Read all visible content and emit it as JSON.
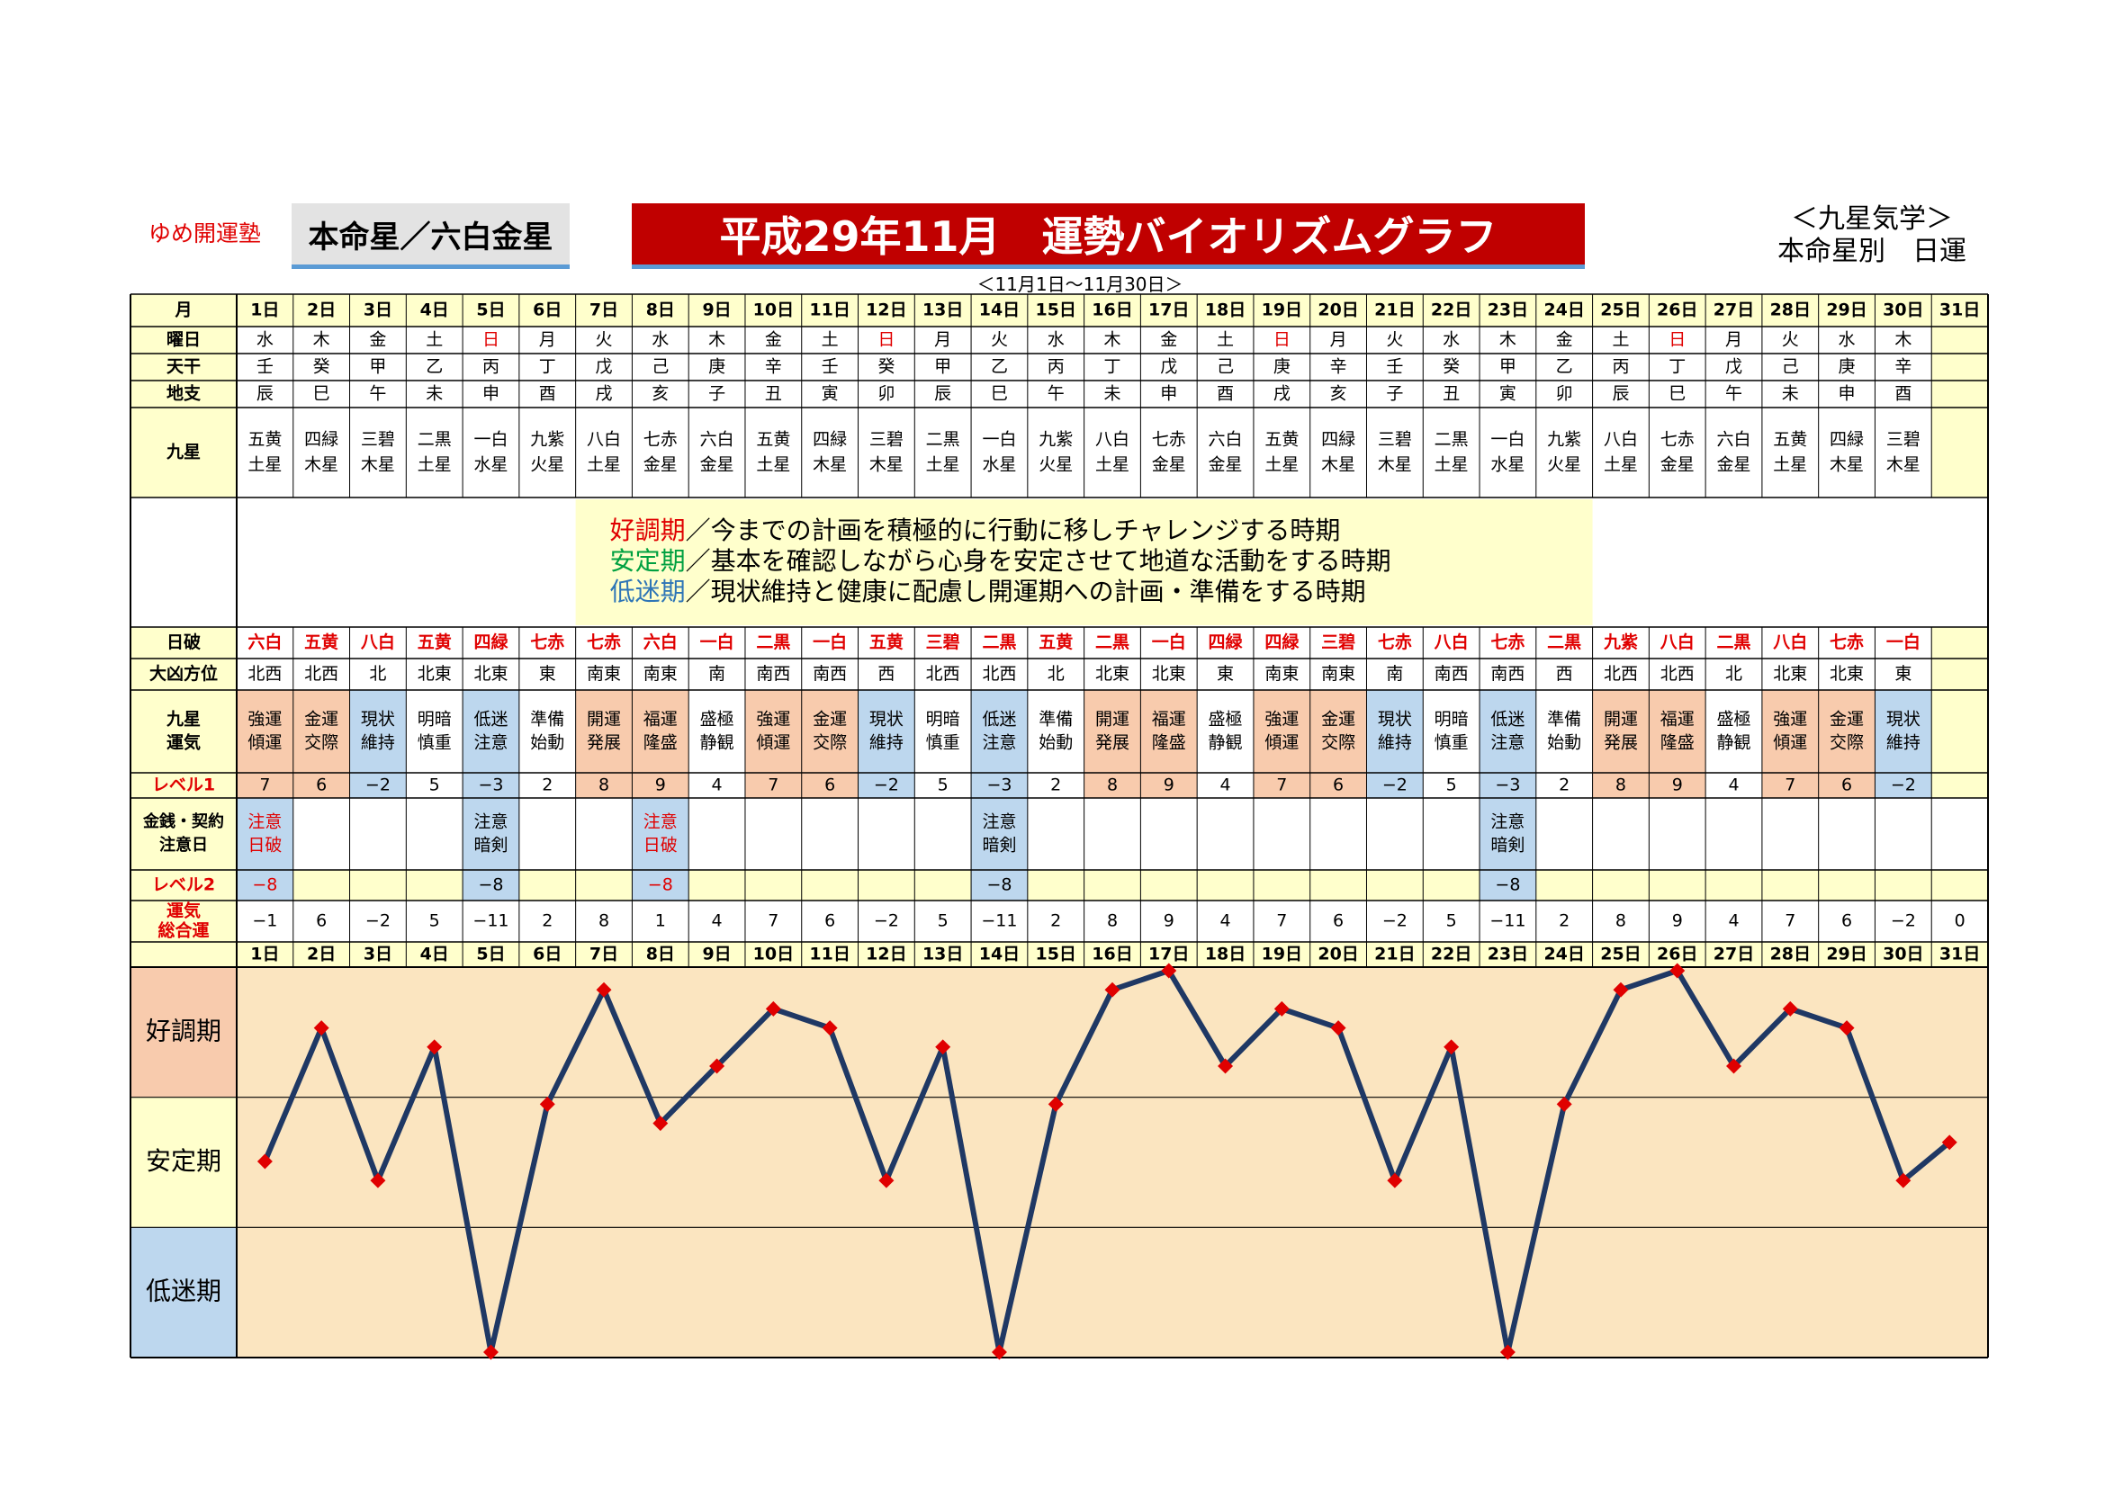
{
  "header": {
    "brand": "ゆめ開運塾",
    "honmei": "本命星／六白金星",
    "title": "平成29年11月　運勢バイオリズムグラフ",
    "kyusei_line1": "＜九星気学＞",
    "kyusei_line2": "本命星別　日運",
    "range": "＜11月1日～11月30日＞"
  },
  "labels": {
    "month": "月",
    "weekday": "曜日",
    "tenkan": "天干",
    "chishi": "地支",
    "kyusei": "九星",
    "hiha": "日破",
    "daikyo": "大凶方位",
    "unki": [
      "九星",
      "運気"
    ],
    "level1": "レベル1",
    "kinsen": [
      "金銭・契約",
      "注意日"
    ],
    "level2": "レベル2",
    "total": [
      "運気",
      "総合運"
    ]
  },
  "legend": [
    {
      "term": "好調期",
      "text": "／今までの計画を積極的に行動に移しチャレンジする時期",
      "color": "#e00000"
    },
    {
      "term": "安定期",
      "text": "／基本を確認しながら心身を安定させて地道な活動をする時期",
      "color": "#00a040"
    },
    {
      "term": "低迷期",
      "text": "／現状維持と健康に配慮し開運期への計画・準備をする時期",
      "color": "#2e75b6"
    }
  ],
  "phases": [
    "好調期",
    "安定期",
    "低迷期"
  ],
  "colors": {
    "title_bg": "#c00000",
    "header_yellow": "#ffffcc",
    "good": "#f8cbad",
    "bad": "#bdd7ee",
    "chart_bg": "#fbe5c0",
    "line": "#1f3864",
    "marker": "#e00000",
    "red_text": "#e00000"
  },
  "days": [
    "1日",
    "2日",
    "3日",
    "4日",
    "5日",
    "6日",
    "7日",
    "8日",
    "9日",
    "10日",
    "11日",
    "12日",
    "13日",
    "14日",
    "15日",
    "16日",
    "17日",
    "18日",
    "19日",
    "20日",
    "21日",
    "22日",
    "23日",
    "24日",
    "25日",
    "26日",
    "27日",
    "28日",
    "29日",
    "30日",
    "31日"
  ],
  "weekday": [
    "水",
    "木",
    "金",
    "土",
    "日",
    "月",
    "火",
    "水",
    "木",
    "金",
    "土",
    "日",
    "月",
    "火",
    "水",
    "木",
    "金",
    "土",
    "日",
    "月",
    "火",
    "水",
    "木",
    "金",
    "土",
    "日",
    "月",
    "火",
    "水",
    "木",
    ""
  ],
  "weekday_red": [
    4,
    11,
    18,
    25
  ],
  "tenkan": [
    "壬",
    "癸",
    "甲",
    "乙",
    "丙",
    "丁",
    "戊",
    "己",
    "庚",
    "辛",
    "壬",
    "癸",
    "甲",
    "乙",
    "丙",
    "丁",
    "戊",
    "己",
    "庚",
    "辛",
    "壬",
    "癸",
    "甲",
    "乙",
    "丙",
    "丁",
    "戊",
    "己",
    "庚",
    "辛",
    ""
  ],
  "chishi": [
    "辰",
    "巳",
    "午",
    "未",
    "申",
    "酉",
    "戌",
    "亥",
    "子",
    "丑",
    "寅",
    "卯",
    "辰",
    "巳",
    "午",
    "未",
    "申",
    "酉",
    "戌",
    "亥",
    "子",
    "丑",
    "寅",
    "卯",
    "辰",
    "巳",
    "午",
    "未",
    "申",
    "酉",
    ""
  ],
  "kyusei": [
    [
      "五黄",
      "土星"
    ],
    [
      "四緑",
      "木星"
    ],
    [
      "三碧",
      "木星"
    ],
    [
      "二黒",
      "土星"
    ],
    [
      "一白",
      "水星"
    ],
    [
      "九紫",
      "火星"
    ],
    [
      "八白",
      "土星"
    ],
    [
      "七赤",
      "金星"
    ],
    [
      "六白",
      "金星"
    ],
    [
      "五黄",
      "土星"
    ],
    [
      "四緑",
      "木星"
    ],
    [
      "三碧",
      "木星"
    ],
    [
      "二黒",
      "土星"
    ],
    [
      "一白",
      "水星"
    ],
    [
      "九紫",
      "火星"
    ],
    [
      "八白",
      "土星"
    ],
    [
      "七赤",
      "金星"
    ],
    [
      "六白",
      "金星"
    ],
    [
      "五黄",
      "土星"
    ],
    [
      "四緑",
      "木星"
    ],
    [
      "三碧",
      "木星"
    ],
    [
      "二黒",
      "土星"
    ],
    [
      "一白",
      "水星"
    ],
    [
      "九紫",
      "火星"
    ],
    [
      "八白",
      "土星"
    ],
    [
      "七赤",
      "金星"
    ],
    [
      "六白",
      "金星"
    ],
    [
      "五黄",
      "土星"
    ],
    [
      "四緑",
      "木星"
    ],
    [
      "三碧",
      "木星"
    ],
    [
      "",
      ""
    ]
  ],
  "hiha": [
    "六白",
    "五黄",
    "八白",
    "五黄",
    "四緑",
    "七赤",
    "七赤",
    "六白",
    "一白",
    "二黒",
    "一白",
    "五黄",
    "三碧",
    "二黒",
    "五黄",
    "二黒",
    "一白",
    "四緑",
    "四緑",
    "三碧",
    "七赤",
    "八白",
    "七赤",
    "二黒",
    "九紫",
    "八白",
    "二黒",
    "八白",
    "七赤",
    "一白",
    ""
  ],
  "daikyo": [
    "北西",
    "北西",
    "北",
    "北東",
    "北東",
    "東",
    "南東",
    "南東",
    "南",
    "南西",
    "南西",
    "西",
    "北西",
    "北西",
    "北",
    "北東",
    "北東",
    "東",
    "南東",
    "南東",
    "南",
    "南西",
    "南西",
    "西",
    "北西",
    "北西",
    "北",
    "北東",
    "北東",
    "東",
    ""
  ],
  "unki": [
    [
      "強運",
      "傾運"
    ],
    [
      "金運",
      "交際"
    ],
    [
      "現状",
      "維持"
    ],
    [
      "明暗",
      "慎重"
    ],
    [
      "低迷",
      "注意"
    ],
    [
      "準備",
      "始動"
    ],
    [
      "開運",
      "発展"
    ],
    [
      "福運",
      "隆盛"
    ],
    [
      "盛極",
      "静観"
    ],
    [
      "強運",
      "傾運"
    ],
    [
      "金運",
      "交際"
    ],
    [
      "現状",
      "維持"
    ],
    [
      "明暗",
      "慎重"
    ],
    [
      "低迷",
      "注意"
    ],
    [
      "準備",
      "始動"
    ],
    [
      "開運",
      "発展"
    ],
    [
      "福運",
      "隆盛"
    ],
    [
      "盛極",
      "静観"
    ],
    [
      "強運",
      "傾運"
    ],
    [
      "金運",
      "交際"
    ],
    [
      "現状",
      "維持"
    ],
    [
      "明暗",
      "慎重"
    ],
    [
      "低迷",
      "注意"
    ],
    [
      "準備",
      "始動"
    ],
    [
      "開運",
      "発展"
    ],
    [
      "福運",
      "隆盛"
    ],
    [
      "盛極",
      "静観"
    ],
    [
      "強運",
      "傾運"
    ],
    [
      "金運",
      "交際"
    ],
    [
      "現状",
      "維持"
    ],
    [
      "",
      ""
    ]
  ],
  "level1": [
    "7",
    "6",
    "−2",
    "5",
    "−3",
    "2",
    "8",
    "9",
    "4",
    "7",
    "6",
    "−2",
    "5",
    "−3",
    "2",
    "8",
    "9",
    "4",
    "7",
    "6",
    "−2",
    "5",
    "−3",
    "2",
    "8",
    "9",
    "4",
    "7",
    "6",
    "−2",
    ""
  ],
  "kinsen": [
    {
      "day": 0,
      "lines": [
        "注意",
        "日破"
      ],
      "red": true
    },
    {
      "day": 4,
      "lines": [
        "注意",
        "暗剣"
      ],
      "red": false
    },
    {
      "day": 7,
      "lines": [
        "注意",
        "日破"
      ],
      "red": true
    },
    {
      "day": 13,
      "lines": [
        "注意",
        "暗剣"
      ],
      "red": false
    },
    {
      "day": 22,
      "lines": [
        "注意",
        "暗剣"
      ],
      "red": false
    }
  ],
  "level2": [
    {
      "day": 0,
      "value": "−8",
      "red": true
    },
    {
      "day": 4,
      "value": "−8",
      "red": false
    },
    {
      "day": 7,
      "value": "−8",
      "red": true
    },
    {
      "day": 13,
      "value": "−8",
      "red": false
    },
    {
      "day": 22,
      "value": "−8",
      "red": false
    }
  ],
  "chart_data": {
    "type": "line",
    "x": [
      1,
      2,
      3,
      4,
      5,
      6,
      7,
      8,
      9,
      10,
      11,
      12,
      13,
      14,
      15,
      16,
      17,
      18,
      19,
      20,
      21,
      22,
      23,
      24,
      25,
      26,
      27,
      28,
      29,
      30,
      31
    ],
    "series": [
      {
        "values": [
          -1,
          6,
          -2,
          5,
          -11,
          2,
          8,
          1,
          4,
          7,
          6,
          -2,
          5,
          -11,
          2,
          8,
          9,
          4,
          7,
          6,
          -2,
          5,
          -11,
          2,
          8,
          9,
          4,
          7,
          6,
          -2,
          0
        ]
      }
    ],
    "total_labels": [
      "−1",
      "6",
      "−2",
      "5",
      "−11",
      "2",
      "8",
      "1",
      "4",
      "7",
      "6",
      "−2",
      "5",
      "−11",
      "2",
      "8",
      "9",
      "4",
      "7",
      "6",
      "−2",
      "5",
      "−11",
      "2",
      "8",
      "9",
      "4",
      "7",
      "6",
      "−2",
      "0"
    ],
    "ylim": [
      -11,
      9
    ],
    "bands": [
      "好調期",
      "安定期",
      "低迷期"
    ]
  }
}
